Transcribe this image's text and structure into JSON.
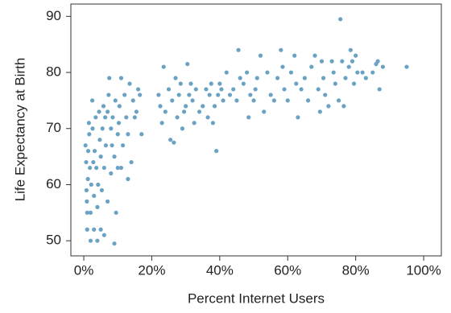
{
  "chart_data": {
    "type": "scatter",
    "x_label": "Percent Internet Users",
    "y_label": "Life Expectancy at Birth",
    "color": "#6aa2c4",
    "x": [
      0.5,
      0.7,
      0.8,
      0.9,
      1,
      1,
      1.2,
      1.3,
      1.5,
      1.6,
      1.8,
      2,
      2,
      2.2,
      2.5,
      2.6,
      2.8,
      3,
      3,
      3.2,
      3.5,
      3.7,
      4,
      4,
      4.2,
      4.5,
      4.7,
      5,
      5,
      5.3,
      5.5,
      5.8,
      6,
      6,
      6.3,
      6.5,
      7,
      7,
      7.3,
      7.5,
      8,
      8,
      8.3,
      8.5,
      9,
      9,
      9.3,
      9.5,
      10,
      10,
      10.3,
      10.5,
      11,
      11,
      11.5,
      12,
      12.5,
      13,
      13,
      13.5,
      14,
      14.5,
      15,
      15.5,
      16,
      16.5,
      17,
      22,
      22.5,
      23,
      23.5,
      24,
      25,
      25.5,
      26,
      26.5,
      27,
      27.5,
      28,
      28.5,
      29,
      29.5,
      30,
      30.5,
      31,
      31.5,
      32,
      32.5,
      33,
      34,
      35,
      36,
      36.5,
      37,
      37.5,
      38,
      38.5,
      39,
      39.5,
      40,
      40.5,
      41,
      42,
      43,
      44,
      45,
      45.5,
      46,
      47,
      48,
      48.5,
      49,
      50,
      50.5,
      51,
      52,
      53,
      54,
      55,
      56,
      57,
      58,
      58.5,
      59,
      60,
      61,
      62,
      62.5,
      63,
      64,
      65,
      66,
      67,
      68,
      69,
      69.5,
      70,
      70.5,
      71,
      72,
      73,
      73.5,
      74,
      75,
      75.5,
      76,
      76.5,
      77,
      78,
      78.5,
      79,
      79.5,
      80,
      80.5,
      82,
      83,
      85,
      86,
      86.5,
      87,
      88,
      95
    ],
    "values": [
      67,
      64,
      59,
      57,
      52,
      55,
      61,
      66,
      71,
      69,
      63,
      50,
      55,
      60,
      75,
      70,
      64,
      52,
      58,
      66,
      72,
      63,
      50,
      56,
      60,
      73,
      68,
      52,
      65,
      59,
      70,
      74,
      51,
      63,
      72,
      67,
      57,
      73,
      76,
      79,
      62,
      70,
      67,
      72,
      49.5,
      65,
      75,
      55,
      63,
      69,
      71,
      74,
      79,
      63,
      67,
      76,
      72,
      61,
      69,
      78,
      64,
      75,
      72,
      73,
      77,
      76,
      69,
      76,
      74,
      71,
      81,
      73,
      77,
      68,
      75,
      67.5,
      79,
      72,
      76,
      78,
      70,
      73,
      74,
      81.5,
      76,
      78,
      75,
      71,
      77,
      73,
      74,
      77,
      72,
      76,
      78,
      71,
      74,
      66,
      76,
      78,
      77,
      75,
      80,
      76,
      77,
      75,
      84,
      79,
      78,
      80,
      72,
      76,
      75,
      77,
      79,
      83,
      73,
      80,
      76,
      75,
      79,
      84,
      81,
      77,
      75,
      80,
      83,
      78,
      72,
      77,
      79,
      75,
      81,
      83,
      77,
      73,
      82,
      79,
      76,
      74,
      82,
      80,
      78,
      75,
      89.5,
      82,
      74,
      79,
      81,
      84,
      82,
      78,
      83,
      80,
      80,
      79,
      80,
      81.5,
      82,
      77,
      81,
      81
    ],
    "xlim": [
      -3.8,
      105.2
    ],
    "ylim": [
      47.3,
      92.2
    ],
    "xticks": [
      {
        "value": 0,
        "label": "0%"
      },
      {
        "value": 20,
        "label": "20%"
      },
      {
        "value": 40,
        "label": "40%"
      },
      {
        "value": 60,
        "label": "60%"
      },
      {
        "value": 80,
        "label": "80%"
      },
      {
        "value": 100,
        "label": "100%"
      }
    ],
    "yticks": [
      50,
      60,
      70,
      80,
      90
    ]
  }
}
